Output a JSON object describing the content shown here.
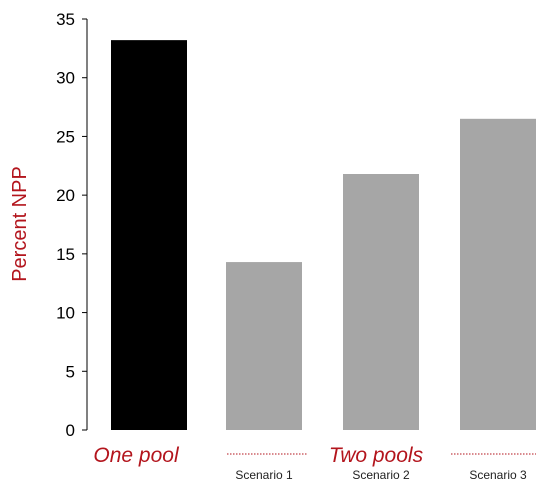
{
  "chart_data": {
    "type": "bar",
    "title": "",
    "xlabel": "",
    "ylabel": "Percent NPP",
    "ylim": [
      0,
      35
    ],
    "yticks": [
      0,
      5,
      10,
      15,
      20,
      25,
      30,
      35
    ],
    "grid": false,
    "bars": [
      {
        "group": "One pool",
        "category": "",
        "value": 33.2,
        "color": "#000000"
      },
      {
        "group": "Two pools",
        "category": "Scenario 1",
        "value": 14.3,
        "color": "#a6a6a6"
      },
      {
        "group": "Two pools",
        "category": "Scenario 2",
        "value": 21.8,
        "color": "#a6a6a6"
      },
      {
        "group": "Two pools",
        "category": "Scenario 3",
        "value": 26.5,
        "color": "#a6a6a6"
      }
    ],
    "groups": [
      {
        "label": "One pool"
      },
      {
        "label": "Two pools"
      }
    ],
    "accent_color": "#b3151d"
  }
}
